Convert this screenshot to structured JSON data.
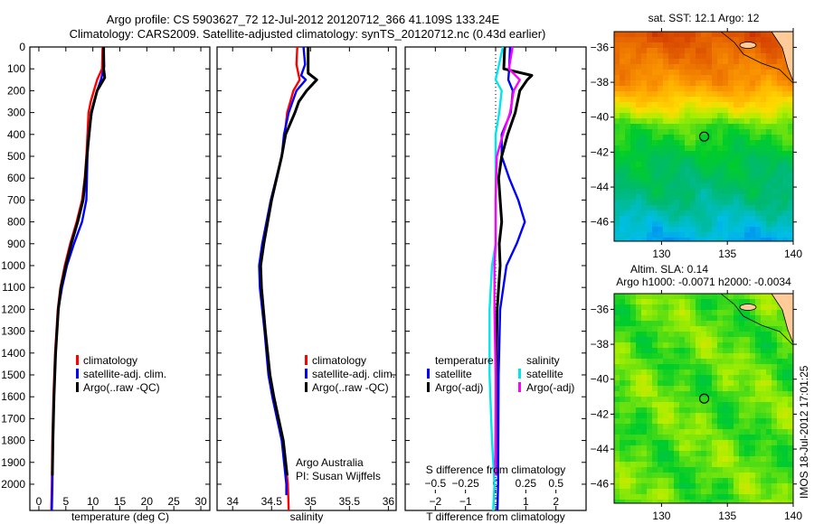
{
  "header": {
    "line1": "Argo profile: CS 5903627_72 12-Jul-2012 20120712_366 41.109S 133.24E",
    "line2": "Climatology: CARS2009. Satellite-adjusted climatology: synTS_20120712.nc (0.43d earlier)"
  },
  "chart_data": [
    {
      "type": "line",
      "title": "",
      "xlabel": "temperature (deg C)",
      "ylabel": "",
      "xlim": [
        -1.67,
        31.67
      ],
      "ylim": [
        0,
        2120
      ],
      "xticks": [
        0,
        5,
        10,
        15,
        20,
        25,
        30
      ],
      "yticks": [
        0,
        100,
        200,
        300,
        400,
        500,
        600,
        700,
        800,
        900,
        1000,
        1100,
        1200,
        1300,
        1400,
        1500,
        1600,
        1700,
        1800,
        1900,
        2000
      ],
      "legend": [
        "climatology",
        "satellite-adj. clim.",
        "Argo(..raw -QC)"
      ],
      "series": [
        {
          "name": "climatology",
          "color": "#ff0000",
          "depth": [
            0,
            100,
            150,
            200,
            250,
            300,
            400,
            500,
            600,
            700,
            800,
            900,
            1000,
            1100,
            1200,
            1400,
            1600,
            1800,
            2000,
            2120
          ],
          "values": [
            11.8,
            11.7,
            10.8,
            10.2,
            9.6,
            9.2,
            9.0,
            8.8,
            8.5,
            8.0,
            7.0,
            5.8,
            4.8,
            4.0,
            3.5,
            3.0,
            2.7,
            2.5,
            2.4,
            2.3
          ]
        },
        {
          "name": "satellite-adj. clim.",
          "color": "#0000ff",
          "depth": [
            0,
            90,
            150,
            200,
            300,
            400,
            500,
            600,
            700,
            800,
            900,
            1000,
            1100,
            1200,
            1400,
            1600,
            1800,
            2000,
            2120
          ],
          "values": [
            12.0,
            12.1,
            11.5,
            10.8,
            9.8,
            9.2,
            9.0,
            8.9,
            8.8,
            8.0,
            6.5,
            5.2,
            4.3,
            3.6,
            3.1,
            2.8,
            2.6,
            2.5,
            2.4
          ]
        },
        {
          "name": "Argo(..raw -QC)",
          "color": "#000000",
          "depth": [
            0,
            100,
            140,
            200,
            300,
            400,
            500,
            600,
            700,
            800,
            900,
            1000,
            1100,
            1200,
            1400,
            1600,
            1800,
            1960
          ],
          "values": [
            12.0,
            12.0,
            12.2,
            10.8,
            9.7,
            9.3,
            8.9,
            8.6,
            8.2,
            7.2,
            6.0,
            5.0,
            4.1,
            3.6,
            3.1,
            2.8,
            2.6,
            2.5
          ]
        }
      ]
    },
    {
      "type": "line",
      "title": "",
      "xlabel": "salinity",
      "ylabel": "",
      "xlim": [
        33.8,
        36.1
      ],
      "ylim": [
        0,
        2120
      ],
      "xticks": [
        34,
        34.5,
        35,
        35.5,
        36
      ],
      "legend": [
        "climatology",
        "satellite-adj. clim.",
        "Argo(..raw -QC)"
      ],
      "annotations": [
        "Argo Australia",
        "PI: Susan Wijffels"
      ],
      "series": [
        {
          "name": "climatology",
          "color": "#ff0000",
          "depth": [
            0,
            80,
            150,
            200,
            300,
            400,
            500,
            700,
            900,
            1000,
            1100,
            1300,
            1500,
            1600,
            1800,
            2000,
            2120
          ],
          "values": [
            34.83,
            34.82,
            34.86,
            34.78,
            34.7,
            34.67,
            34.63,
            34.5,
            34.4,
            34.36,
            34.37,
            34.42,
            34.48,
            34.53,
            34.65,
            34.71,
            34.72
          ]
        },
        {
          "name": "satellite-adj. clim.",
          "color": "#0000ff",
          "depth": [
            0,
            80,
            130,
            150,
            200,
            300,
            400,
            500,
            700,
            900,
            1000,
            1100,
            1300,
            1500,
            1600,
            1800,
            2000,
            2050
          ],
          "values": [
            34.91,
            34.93,
            34.88,
            34.94,
            34.82,
            34.72,
            34.66,
            34.63,
            34.49,
            34.38,
            34.34,
            34.35,
            34.41,
            34.46,
            34.51,
            34.63,
            34.69,
            34.69
          ]
        },
        {
          "name": "Argo(..raw -QC)",
          "color": "#000000",
          "depth": [
            0,
            120,
            150,
            200,
            250,
            300,
            400,
            500,
            700,
            900,
            1000,
            1100,
            1300,
            1500,
            1600,
            1800,
            1960
          ],
          "values": [
            34.97,
            34.97,
            35.08,
            34.95,
            34.85,
            34.8,
            34.68,
            34.63,
            34.5,
            34.4,
            34.36,
            34.37,
            34.42,
            34.48,
            34.53,
            34.65,
            34.7
          ]
        }
      ]
    },
    {
      "type": "line",
      "title": "",
      "xlabel": "T difference from climatology",
      "xlabel2": "S difference from climatology",
      "xlim": [
        -3,
        3
      ],
      "xlim2": [
        -0.75,
        0.75
      ],
      "ylim": [
        0,
        2120
      ],
      "xticks": [
        -2,
        -1,
        0,
        1,
        2
      ],
      "xticks2": [
        "-0.5",
        "-0.25",
        "0",
        "0.25",
        "0.5"
      ],
      "xticks2_values": [
        -0.5,
        -0.25,
        0,
        0.25,
        0.5
      ],
      "legend_headers": [
        "temperature",
        "salinity"
      ],
      "legend": [
        "satellite",
        "Argo(-adj)",
        "satellite",
        "Argo(-adj)"
      ],
      "series": [
        {
          "name": "temperature satellite",
          "axis": "T",
          "color": "#0000ff",
          "depth": [
            0,
            100,
            150,
            200,
            300,
            400,
            500,
            600,
            700,
            800,
            900,
            1000,
            1200,
            1500,
            2000,
            2120
          ],
          "values": [
            0.48,
            0.45,
            0.42,
            0.57,
            0.5,
            0.2,
            0.2,
            0.45,
            0.75,
            0.97,
            0.7,
            0.36,
            0.15,
            0.1,
            0.08,
            0.06
          ]
        },
        {
          "name": "temperature Argo(-adj)",
          "axis": "T",
          "color": "#000000",
          "depth": [
            0,
            100,
            130,
            150,
            200,
            300,
            400,
            500,
            600,
            700,
            800,
            900,
            1000,
            1200,
            1500,
            1960
          ],
          "values": [
            0.3,
            0.27,
            1.2,
            1.05,
            0.8,
            0.65,
            0.4,
            0.2,
            0.1,
            0.15,
            0.2,
            0.12,
            0.15,
            0.05,
            0.02,
            0.0
          ]
        },
        {
          "name": "salinity satellite",
          "axis": "S",
          "color": "#00e5ee",
          "depth": [
            0,
            100,
            150,
            200,
            300,
            400,
            500,
            700,
            900,
            1000,
            1200,
            1500,
            1800,
            2000,
            2120
          ],
          "values": [
            0.06,
            0.02,
            0.0,
            0.05,
            0.03,
            0.0,
            0.0,
            0.0,
            0.0,
            -0.03,
            -0.05,
            -0.05,
            -0.03,
            -0.01,
            -0.02
          ]
        },
        {
          "name": "salinity Argo(-adj)",
          "axis": "S",
          "color": "#ff00ff",
          "depth": [
            0,
            100,
            150,
            200,
            300,
            400,
            500,
            700,
            900,
            1000,
            1200,
            1500,
            1800,
            1960
          ],
          "values": [
            0.14,
            0.11,
            0.2,
            0.15,
            0.12,
            0.06,
            0.01,
            0.0,
            0.0,
            -0.01,
            -0.01,
            0.0,
            0.0,
            0.0
          ]
        }
      ]
    }
  ],
  "maps": [
    {
      "title": "sat. SST: 12.1  Argo: 12",
      "lon_ticks": [
        130,
        135,
        140
      ],
      "lat_ticks": [
        -36,
        -38,
        -40,
        -42,
        -44,
        -46
      ],
      "lon_range": [
        126.4,
        140
      ],
      "lat_range": [
        -47.1,
        -35.1
      ],
      "argo_position": {
        "lat": -41.109,
        "lon": 133.24
      }
    },
    {
      "title": "Altim. SLA: 0.14",
      "subtitle": "Argo h1000: -0.0071 h2000: -0.0034",
      "lon_ticks": [
        130,
        135,
        140
      ],
      "lat_ticks": [
        -36,
        -38,
        -40,
        -42,
        -44,
        -46
      ],
      "lon_range": [
        126.4,
        140
      ],
      "lat_range": [
        -47.1,
        -35.1
      ],
      "argo_position": {
        "lat": -41.109,
        "lon": 133.24
      }
    }
  ],
  "stamp": "IMOS 18-Jul-2012 17:01:25"
}
